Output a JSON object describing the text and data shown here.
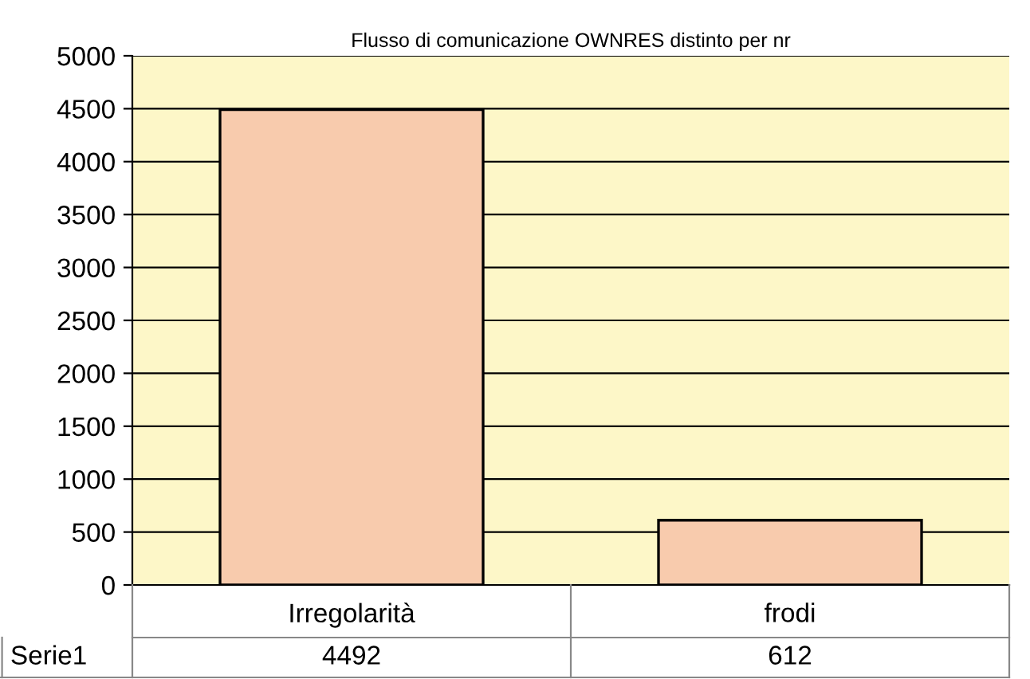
{
  "chart_data": {
    "type": "bar",
    "title": "Flusso di comunicazione OWNRES distinto per nr",
    "categories": [
      "Irregolarità",
      "frodi"
    ],
    "series": [
      {
        "name": "Serie1",
        "color": "#f8cbad",
        "values": [
          4492,
          612
        ]
      }
    ],
    "ylim": [
      0,
      5000
    ],
    "yticks": [
      0,
      500,
      1000,
      1500,
      2000,
      2500,
      3000,
      3500,
      4000,
      4500,
      5000
    ],
    "grid": "y",
    "data_labels": true
  }
}
